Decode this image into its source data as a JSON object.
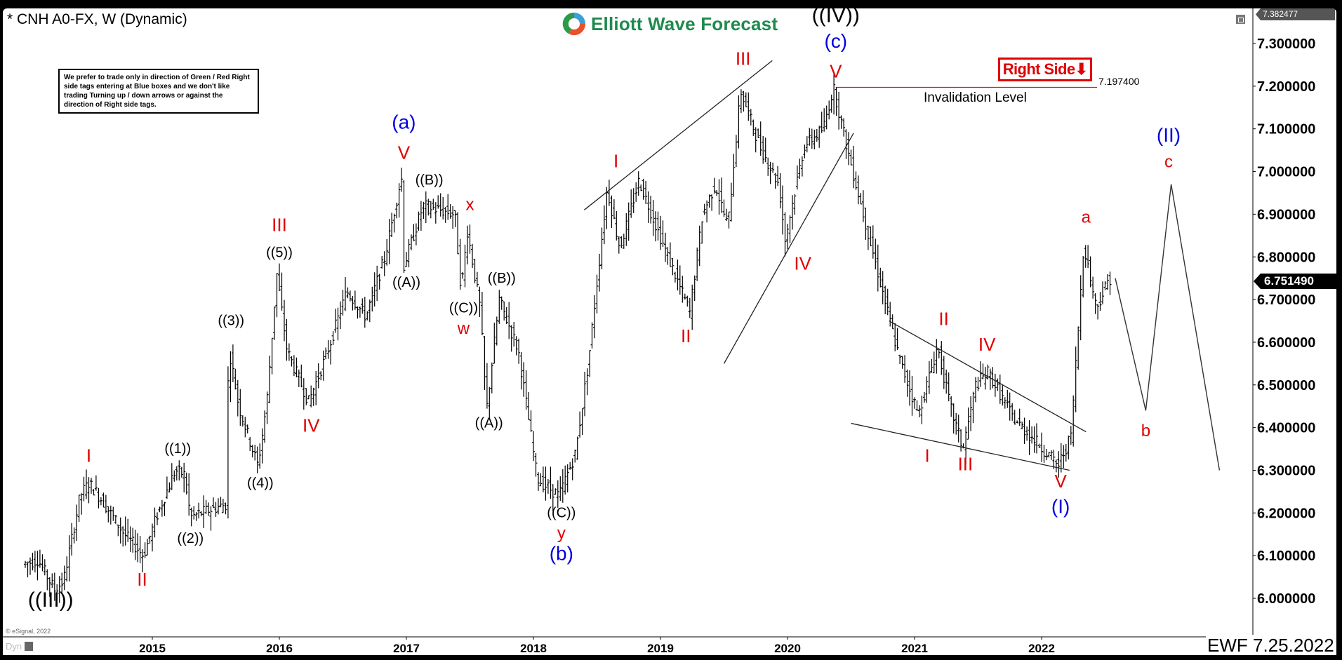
{
  "header": {
    "title": "* CNH A0-FX, W (Dynamic)",
    "logo_text": "Elliott Wave Forecast",
    "notice": "We prefer to trade only in direction of Green / Red Right side tags entering at Blue boxes and we don't like trading Turning up / down arrows or against the direction of Right side tags."
  },
  "annotations": {
    "right_side_tag": "Right Side⬇",
    "invalidation_value": "7.197400",
    "invalidation_label": "Invalidation Level",
    "high_badge": "7.382477",
    "last_price_badge": "6.751490",
    "copyright": "© eSignal, 2022",
    "dyn_label": "Dyn",
    "footer_stamp": "EWF 7.25.2022"
  },
  "colors": {
    "red": "#e00000",
    "blue": "#0000e0",
    "black": "#000000",
    "logo_green": "#1e8a4f"
  },
  "chart_data": {
    "type": "ohlc",
    "title": "* CNH A0-FX, W (Dynamic)",
    "xlabel": "",
    "ylabel": "",
    "ylim": [
      5.9,
      7.382477
    ],
    "y_ticks": [
      "7.300000",
      "7.200000",
      "7.100000",
      "7.000000",
      "6.900000",
      "6.800000",
      "6.700000",
      "6.600000",
      "6.500000",
      "6.400000",
      "6.300000",
      "6.200000",
      "6.100000",
      "6.000000"
    ],
    "x_ticks": [
      "2015",
      "2016",
      "2017",
      "2018",
      "2019",
      "2020",
      "2021",
      "2022"
    ],
    "last_price": 6.75149,
    "invalidation_level": 7.1974,
    "price_path": [
      [
        2014.0,
        6.08
      ],
      [
        2014.12,
        6.09
      ],
      [
        2014.25,
        6.02
      ],
      [
        2014.32,
        6.04
      ],
      [
        2014.45,
        6.24
      ],
      [
        2014.52,
        6.27
      ],
      [
        2014.6,
        6.24
      ],
      [
        2014.8,
        6.15
      ],
      [
        2014.95,
        6.1
      ],
      [
        2015.05,
        6.19
      ],
      [
        2015.2,
        6.3
      ],
      [
        2015.27,
        6.29
      ],
      [
        2015.32,
        6.19
      ],
      [
        2015.4,
        6.2
      ],
      [
        2015.6,
        6.22
      ],
      [
        2015.62,
        6.59
      ],
      [
        2015.7,
        6.45
      ],
      [
        2015.85,
        6.31
      ],
      [
        2015.92,
        6.46
      ],
      [
        2016.0,
        6.76
      ],
      [
        2016.08,
        6.58
      ],
      [
        2016.25,
        6.46
      ],
      [
        2016.4,
        6.58
      ],
      [
        2016.55,
        6.72
      ],
      [
        2016.7,
        6.66
      ],
      [
        2016.85,
        6.8
      ],
      [
        2016.98,
        6.99
      ],
      [
        2017.0,
        6.78
      ],
      [
        2017.15,
        6.92
      ],
      [
        2017.4,
        6.9
      ],
      [
        2017.45,
        6.72
      ],
      [
        2017.5,
        6.86
      ],
      [
        2017.6,
        6.68
      ],
      [
        2017.65,
        6.44
      ],
      [
        2017.75,
        6.7
      ],
      [
        2017.9,
        6.58
      ],
      [
        2018.05,
        6.28
      ],
      [
        2018.22,
        6.24
      ],
      [
        2018.35,
        6.34
      ],
      [
        2018.45,
        6.55
      ],
      [
        2018.6,
        6.96
      ],
      [
        2018.7,
        6.82
      ],
      [
        2018.85,
        6.98
      ],
      [
        2019.0,
        6.86
      ],
      [
        2019.25,
        6.67
      ],
      [
        2019.35,
        6.9
      ],
      [
        2019.45,
        6.97
      ],
      [
        2019.55,
        6.87
      ],
      [
        2019.65,
        7.19
      ],
      [
        2019.8,
        7.06
      ],
      [
        2019.95,
        6.97
      ],
      [
        2020.0,
        6.84
      ],
      [
        2020.15,
        7.06
      ],
      [
        2020.3,
        7.1
      ],
      [
        2020.38,
        7.197
      ],
      [
        2020.5,
        7.04
      ],
      [
        2020.7,
        6.8
      ],
      [
        2020.9,
        6.56
      ],
      [
        2021.05,
        6.43
      ],
      [
        2021.2,
        6.59
      ],
      [
        2021.3,
        6.45
      ],
      [
        2021.4,
        6.35
      ],
      [
        2021.5,
        6.5
      ],
      [
        2021.6,
        6.53
      ],
      [
        2021.8,
        6.42
      ],
      [
        2022.0,
        6.36
      ],
      [
        2022.15,
        6.31
      ],
      [
        2022.25,
        6.38
      ],
      [
        2022.3,
        6.6
      ],
      [
        2022.35,
        6.83
      ],
      [
        2022.45,
        6.68
      ],
      [
        2022.55,
        6.75
      ]
    ],
    "projection": [
      [
        2022.58,
        6.75
      ],
      [
        2022.82,
        6.44
      ],
      [
        2023.02,
        6.97
      ],
      [
        2023.4,
        6.3
      ]
    ],
    "trendlines": [
      {
        "from": [
          2018.4,
          6.91
        ],
        "to": [
          2019.88,
          7.26
        ]
      },
      {
        "from": [
          2019.5,
          6.55
        ],
        "to": [
          2020.52,
          7.09
        ]
      },
      {
        "from": [
          2020.8,
          6.65
        ],
        "to": [
          2022.35,
          6.39
        ]
      },
      {
        "from": [
          2020.5,
          6.41
        ],
        "to": [
          2022.22,
          6.3
        ]
      }
    ],
    "wave_labels": [
      {
        "text": "((III))",
        "color": "black",
        "x": 2014.2,
        "y": 5.98,
        "size": 30
      },
      {
        "text": "I",
        "color": "red",
        "x": 2014.5,
        "y": 6.32,
        "size": 26
      },
      {
        "text": "II",
        "color": "red",
        "x": 2014.92,
        "y": 6.03,
        "size": 26
      },
      {
        "text": "((1))",
        "color": "black",
        "x": 2015.2,
        "y": 6.34,
        "size": 20
      },
      {
        "text": "((2))",
        "color": "black",
        "x": 2015.3,
        "y": 6.13,
        "size": 20
      },
      {
        "text": "((3))",
        "color": "black",
        "x": 2015.62,
        "y": 6.64,
        "size": 20
      },
      {
        "text": "((4))",
        "color": "black",
        "x": 2015.85,
        "y": 6.26,
        "size": 20
      },
      {
        "text": "III",
        "color": "red",
        "x": 2016.0,
        "y": 6.86,
        "size": 26
      },
      {
        "text": "((5))",
        "color": "black",
        "x": 2016.0,
        "y": 6.8,
        "size": 20
      },
      {
        "text": "IV",
        "color": "red",
        "x": 2016.25,
        "y": 6.39,
        "size": 26
      },
      {
        "text": "(a)",
        "color": "blue",
        "x": 2016.98,
        "y": 7.1,
        "size": 28
      },
      {
        "text": "V",
        "color": "red",
        "x": 2016.98,
        "y": 7.03,
        "size": 26
      },
      {
        "text": "((B))",
        "color": "black",
        "x": 2017.18,
        "y": 6.97,
        "size": 20
      },
      {
        "text": "((A))",
        "color": "black",
        "x": 2017.0,
        "y": 6.73,
        "size": 20
      },
      {
        "text": "x",
        "color": "red",
        "x": 2017.5,
        "y": 6.91,
        "size": 24
      },
      {
        "text": "((C))",
        "color": "black",
        "x": 2017.45,
        "y": 6.67,
        "size": 20
      },
      {
        "text": "w",
        "color": "red",
        "x": 2017.45,
        "y": 6.62,
        "size": 24
      },
      {
        "text": "((B))",
        "color": "black",
        "x": 2017.75,
        "y": 6.74,
        "size": 20
      },
      {
        "text": "((A))",
        "color": "black",
        "x": 2017.65,
        "y": 6.4,
        "size": 20
      },
      {
        "text": "((C))",
        "color": "black",
        "x": 2018.22,
        "y": 6.19,
        "size": 20
      },
      {
        "text": "y",
        "color": "red",
        "x": 2018.22,
        "y": 6.14,
        "size": 24
      },
      {
        "text": "(b)",
        "color": "blue",
        "x": 2018.22,
        "y": 6.09,
        "size": 28
      },
      {
        "text": "I",
        "color": "red",
        "x": 2018.65,
        "y": 7.01,
        "size": 26
      },
      {
        "text": "II",
        "color": "red",
        "x": 2019.2,
        "y": 6.6,
        "size": 26
      },
      {
        "text": "III",
        "color": "red",
        "x": 2019.65,
        "y": 7.25,
        "size": 26
      },
      {
        "text": "IV",
        "color": "red",
        "x": 2020.12,
        "y": 6.77,
        "size": 26
      },
      {
        "text": "((IV))",
        "color": "black",
        "x": 2020.38,
        "y": 7.35,
        "size": 30
      },
      {
        "text": "(c)",
        "color": "blue",
        "x": 2020.38,
        "y": 7.29,
        "size": 28
      },
      {
        "text": "V",
        "color": "red",
        "x": 2020.38,
        "y": 7.22,
        "size": 26
      },
      {
        "text": "II",
        "color": "red",
        "x": 2021.23,
        "y": 6.64,
        "size": 26
      },
      {
        "text": "IV",
        "color": "red",
        "x": 2021.57,
        "y": 6.58,
        "size": 26
      },
      {
        "text": "I",
        "color": "red",
        "x": 2021.1,
        "y": 6.32,
        "size": 26
      },
      {
        "text": "III",
        "color": "red",
        "x": 2021.4,
        "y": 6.3,
        "size": 26
      },
      {
        "text": "V",
        "color": "red",
        "x": 2022.15,
        "y": 6.26,
        "size": 26
      },
      {
        "text": "(I)",
        "color": "blue",
        "x": 2022.15,
        "y": 6.2,
        "size": 28
      },
      {
        "text": "a",
        "color": "red",
        "x": 2022.35,
        "y": 6.88,
        "size": 24
      },
      {
        "text": "b",
        "color": "red",
        "x": 2022.82,
        "y": 6.38,
        "size": 24
      },
      {
        "text": "(II)",
        "color": "blue",
        "x": 2023.0,
        "y": 7.07,
        "size": 28
      },
      {
        "text": "c",
        "color": "red",
        "x": 2023.0,
        "y": 7.01,
        "size": 24
      }
    ]
  }
}
